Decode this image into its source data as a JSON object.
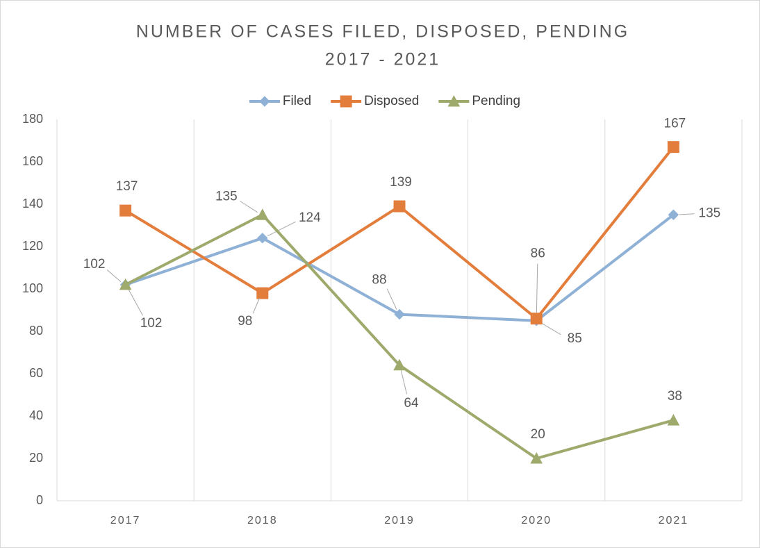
{
  "chart_data": {
    "type": "line",
    "title": "NUMBER OF CASES FILED, DISPOSED, PENDING",
    "subtitle": "2017 - 2021",
    "categories": [
      "2017",
      "2018",
      "2019",
      "2020",
      "2021"
    ],
    "series": [
      {
        "name": "Filed",
        "color": "#8fb1d6",
        "marker": "diamond",
        "values": [
          102,
          124,
          88,
          85,
          135
        ]
      },
      {
        "name": "Disposed",
        "color": "#e37d3c",
        "marker": "square",
        "values": [
          137,
          98,
          139,
          86,
          167
        ]
      },
      {
        "name": "Pending",
        "color": "#9eaa6c",
        "marker": "triangle",
        "values": [
          102,
          135,
          64,
          20,
          38
        ]
      }
    ],
    "ylim": [
      0,
      180
    ],
    "yticks": [
      0,
      20,
      40,
      60,
      80,
      100,
      120,
      140,
      160,
      180
    ],
    "legend": "top",
    "grid": false
  }
}
